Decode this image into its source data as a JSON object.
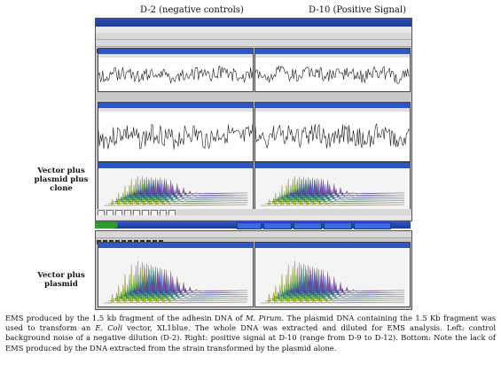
{
  "headers": {
    "left": "D-2 (negative controls)",
    "right": "D-10 (Positive Signal)"
  },
  "side_labels": {
    "top": "Vector plus plasmid plus clone",
    "bottom": "Vector plus plasmid"
  },
  "caption": "EMS produced by the 1.5 kb fragment of the adhesin DNA of M. Pirum. The plasmid DNA containing the 1.5 Kb fragment was used to transform an E. Coli vector, XL1blue. The whole DNA was extracted and diluted for EMS analysis. Left: control background noise of a negative dilution (D-2). Right: positive signal at D-10 (range from D-9 to D-12). Bottom: Note the lack of EMS produced by the DNA extracted from the strain transformed by the plasmid alone.",
  "caption_parts": {
    "p1": "EMS produced by the 1.5 kb fragment of the adhesin DNA of ",
    "species": "M. Pirum",
    "p2": ". The plasmid DNA containing the 1.5 Kb fragment was used to transform an ",
    "organism": "E. Coli",
    "p3": " vector, XL1blue. The whole DNA was extracted and diluted for EMS analysis. Left: control background noise of a negative dilution (D-2). Right: positive signal at D-10 (range from D-9 to D-12). Bottom: Note the lack of EMS produced by the DNA extracted from the strain transformed by the plasmid alone."
  },
  "colors": {
    "waveform": "#1a1a1a",
    "pane_title": "#2f57c4",
    "window_bg": "#c9c9c9"
  }
}
